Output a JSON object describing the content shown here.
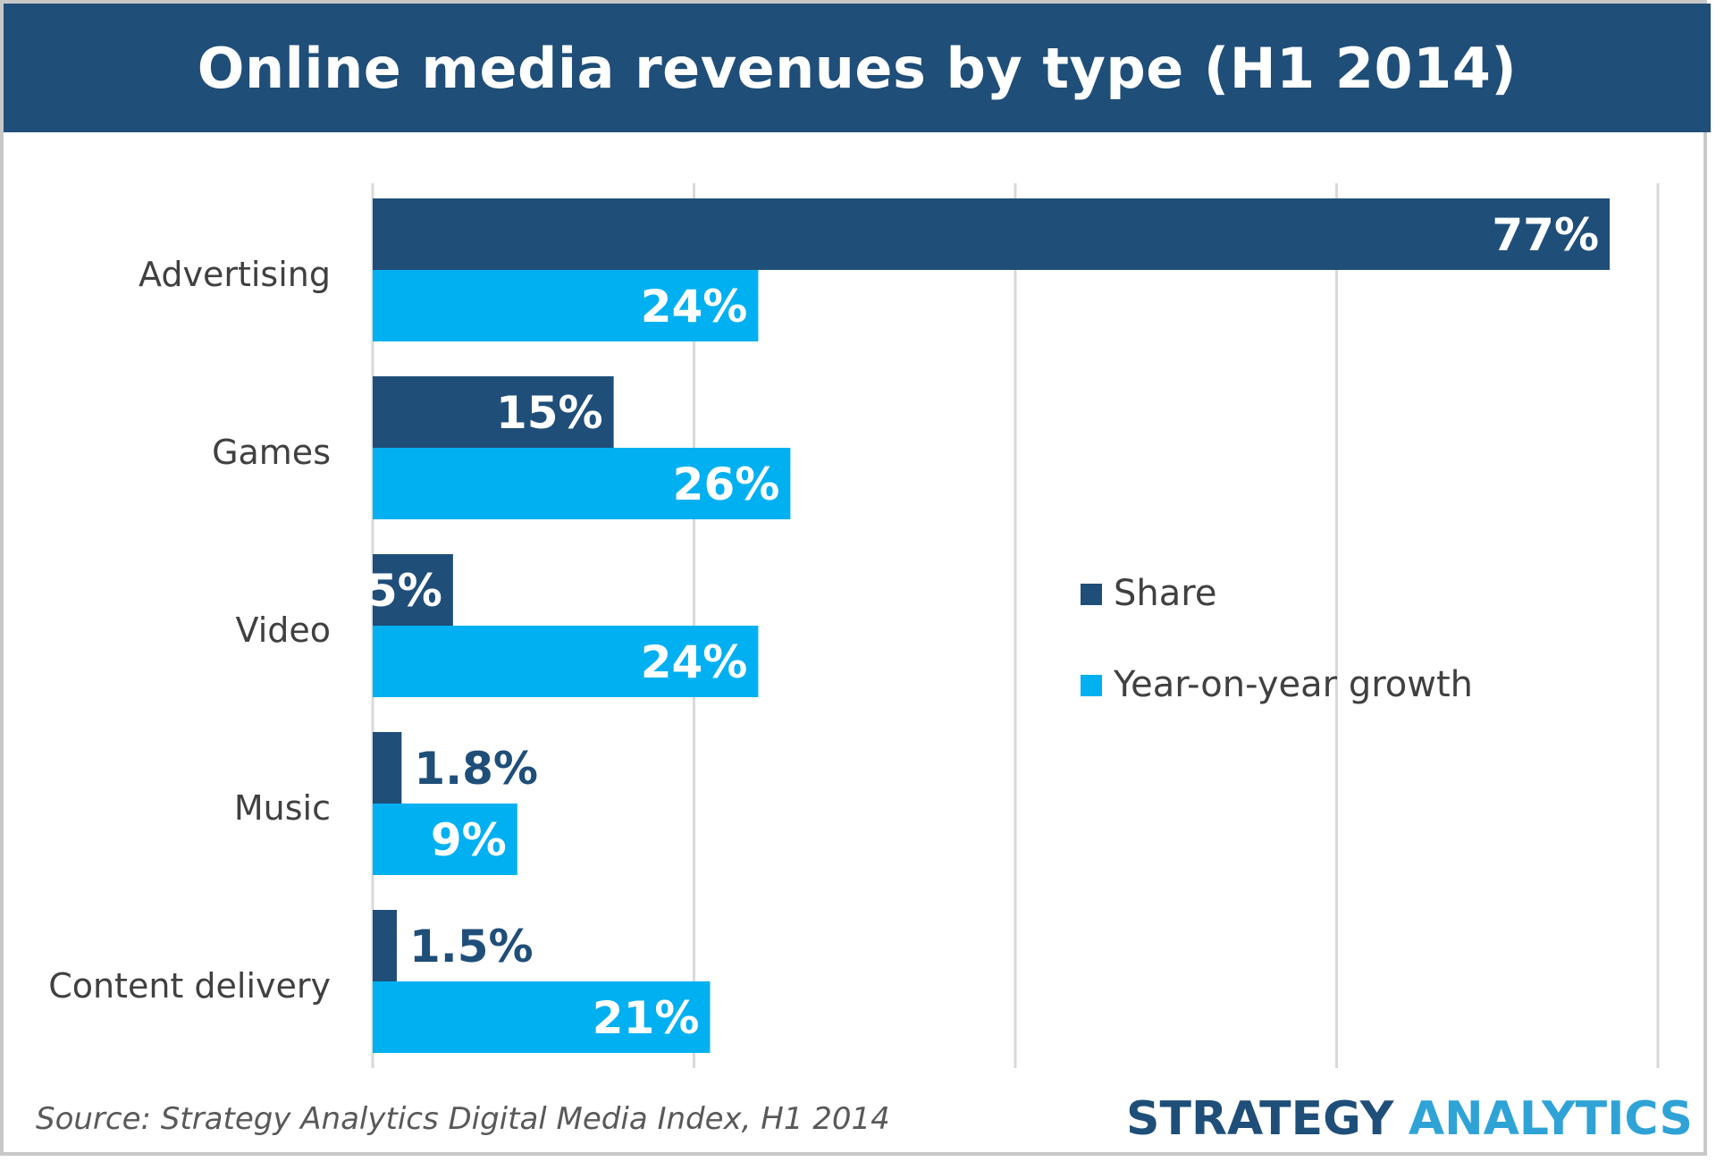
{
  "colors": {
    "share": "#1f4e79",
    "growth": "#00b0f0",
    "title_bg": "#1f4e79",
    "gridline": "#d9d9d9"
  },
  "chart_data": {
    "type": "bar",
    "orientation": "horizontal",
    "title": "Online media revenues by type (H1 2014)",
    "categories": [
      "Advertising",
      "Games",
      "Video",
      "Music",
      "Content delivery"
    ],
    "series": [
      {
        "name": "Share",
        "values": [
          77,
          15,
          5,
          1.8,
          1.5
        ],
        "labels": [
          "77%",
          "15%",
          "5%",
          "1.8%",
          "1.5%"
        ]
      },
      {
        "name": "Year-on-year growth",
        "values": [
          24,
          26,
          24,
          9,
          21
        ],
        "labels": [
          "24%",
          "26%",
          "24%",
          "9%",
          "21%"
        ]
      }
    ],
    "xlim": [
      0,
      80
    ],
    "grid": true,
    "legend": "center-right"
  },
  "footer": {
    "source": "Source: Strategy Analytics Digital Media Index, H1 2014",
    "brand_part1": "STRATEGY",
    "brand_part2": "ANALYTICS"
  }
}
